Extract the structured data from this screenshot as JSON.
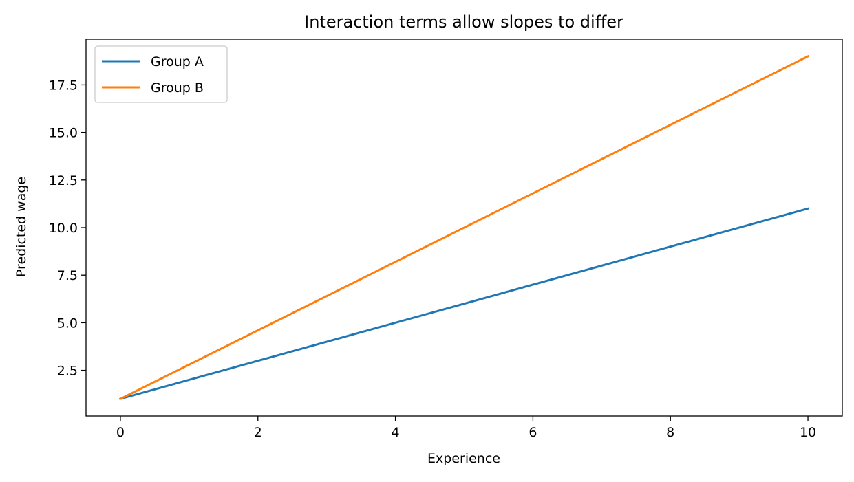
{
  "chart_data": {
    "type": "line",
    "title": "Interaction terms allow slopes to differ",
    "xlabel": "Experience",
    "ylabel": "Predicted wage",
    "xlim": [
      -0.5,
      10.5
    ],
    "ylim": [
      0.1,
      19.9
    ],
    "x_ticks": [
      0,
      2,
      4,
      6,
      8,
      10
    ],
    "x_tick_labels": [
      "0",
      "2",
      "4",
      "6",
      "8",
      "10"
    ],
    "y_ticks": [
      2.5,
      5.0,
      7.5,
      10.0,
      12.5,
      15.0,
      17.5
    ],
    "y_tick_labels": [
      "2.5",
      "5.0",
      "7.5",
      "10.0",
      "12.5",
      "15.0",
      "17.5"
    ],
    "grid": false,
    "legend_position": "top-left",
    "series": [
      {
        "name": "Group A",
        "color": "#1f77b4",
        "x": [
          0,
          10
        ],
        "y": [
          1.0,
          11.0
        ]
      },
      {
        "name": "Group B",
        "color": "#ff7f0e",
        "x": [
          0,
          10
        ],
        "y": [
          1.0,
          19.0
        ]
      }
    ]
  }
}
